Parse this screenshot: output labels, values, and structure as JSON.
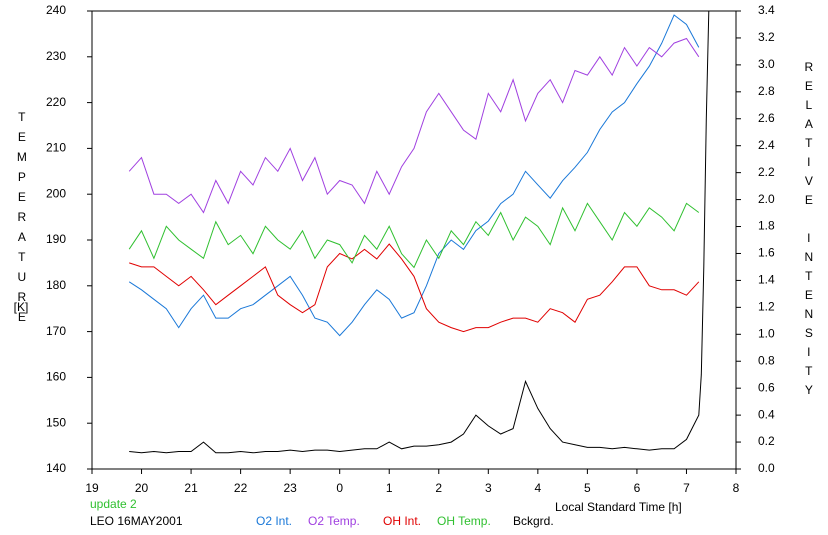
{
  "chart_data": {
    "type": "line",
    "axis_labels": {
      "y": "TEMPERATURE",
      "y_unit": "[K]",
      "y2": "RELATIVE INTENSITY",
      "x": "Local Standard Time [h]"
    },
    "annotations": [
      "update 2",
      "LEO 16MAY2001"
    ],
    "x": [
      19.75,
      20,
      20.25,
      20.5,
      20.75,
      21,
      21.25,
      21.5,
      21.75,
      22,
      22.25,
      22.5,
      22.75,
      23,
      23.25,
      23.5,
      23.75,
      24,
      24.25,
      24.5,
      24.75,
      25,
      25.25,
      25.5,
      25.75,
      26,
      26.25,
      26.5,
      26.75,
      27,
      27.25,
      27.5,
      27.75,
      28,
      28.25,
      28.5,
      28.75,
      29,
      29.25,
      29.5,
      29.75,
      30,
      30.25,
      30.5,
      30.75,
      31,
      31.25
    ],
    "series": [
      {
        "name": "O2 Int.",
        "color": "#1a78d8",
        "axis": "y2",
        "values": [
          1.39,
          1.33,
          1.26,
          1.19,
          1.05,
          1.19,
          1.29,
          1.12,
          1.12,
          1.19,
          1.22,
          1.29,
          1.36,
          1.43,
          1.29,
          1.12,
          1.09,
          0.99,
          1.09,
          1.22,
          1.33,
          1.26,
          1.12,
          1.16,
          1.36,
          1.6,
          1.7,
          1.63,
          1.77,
          1.84,
          1.97,
          2.04,
          2.21,
          2.11,
          2.01,
          2.14,
          2.24,
          2.35,
          2.52,
          2.65,
          2.72,
          2.86,
          2.99,
          3.16,
          3.37,
          3.3,
          3.13
        ]
      },
      {
        "name": "O2 Temp.",
        "color": "#a040e0",
        "values": [
          205,
          208,
          200,
          200,
          198,
          200,
          196,
          203,
          198,
          205,
          202,
          208,
          205,
          210,
          203,
          208,
          200,
          203,
          202,
          198,
          205,
          200,
          206,
          210,
          218,
          222,
          218,
          214,
          212,
          222,
          218,
          225,
          216,
          222,
          225,
          220,
          227,
          226,
          230,
          226,
          232,
          228,
          232,
          230,
          233,
          234,
          230
        ]
      },
      {
        "name": "OH Int.",
        "color": "#e00000",
        "axis": "y2",
        "values": [
          1.53,
          1.5,
          1.5,
          1.43,
          1.36,
          1.43,
          1.33,
          1.22,
          1.29,
          1.36,
          1.43,
          1.5,
          1.29,
          1.22,
          1.16,
          1.22,
          1.5,
          1.6,
          1.56,
          1.63,
          1.56,
          1.67,
          1.56,
          1.43,
          1.19,
          1.09,
          1.05,
          1.02,
          1.05,
          1.05,
          1.09,
          1.12,
          1.12,
          1.09,
          1.19,
          1.16,
          1.09,
          1.26,
          1.29,
          1.39,
          1.5,
          1.5,
          1.36,
          1.33,
          1.33,
          1.29,
          1.39
        ]
      },
      {
        "name": "OH Temp.",
        "color": "#30c030",
        "values": [
          188,
          192,
          186,
          193,
          190,
          188,
          186,
          194,
          189,
          191,
          187,
          193,
          190,
          188,
          192,
          186,
          190,
          189,
          185,
          191,
          188,
          193,
          187,
          184,
          190,
          186,
          192,
          189,
          194,
          191,
          196,
          190,
          195,
          193,
          189,
          197,
          192,
          198,
          194,
          190,
          196,
          193,
          197,
          195,
          192,
          198,
          196
        ]
      },
      {
        "name": "Bckgrd.",
        "color": "#000000",
        "axis": "y2",
        "x": [
          19.75,
          20,
          20.25,
          20.5,
          20.75,
          21,
          21.25,
          21.5,
          21.75,
          22,
          22.25,
          22.5,
          22.75,
          23,
          23.25,
          23.5,
          23.75,
          24,
          24.25,
          24.5,
          24.75,
          25,
          25.25,
          25.5,
          25.75,
          26,
          26.25,
          26.5,
          26.75,
          27,
          27.25,
          27.5,
          27.75,
          28,
          28.25,
          28.5,
          28.75,
          29,
          29.25,
          29.5,
          29.75,
          30,
          30.25,
          30.5,
          30.75,
          31,
          31.25,
          31.3,
          31.35,
          31.4,
          31.45
        ],
        "values": [
          0.13,
          0.12,
          0.13,
          0.12,
          0.13,
          0.13,
          0.2,
          0.12,
          0.12,
          0.13,
          0.12,
          0.13,
          0.13,
          0.14,
          0.13,
          0.14,
          0.14,
          0.13,
          0.14,
          0.15,
          0.15,
          0.2,
          0.15,
          0.17,
          0.17,
          0.18,
          0.2,
          0.26,
          0.4,
          0.32,
          0.26,
          0.3,
          0.65,
          0.45,
          0.3,
          0.2,
          0.18,
          0.16,
          0.16,
          0.15,
          0.16,
          0.15,
          0.14,
          0.15,
          0.15,
          0.22,
          0.4,
          0.7,
          1.5,
          2.6,
          3.4
        ]
      }
    ],
    "xlim": [
      19,
      32
    ],
    "xticks": [
      19,
      20,
      21,
      22,
      23,
      {
        "value": 24,
        "label": "0"
      },
      {
        "value": 25,
        "label": "1"
      },
      {
        "value": 26,
        "label": "2"
      },
      {
        "value": 27,
        "label": "3"
      },
      {
        "value": 28,
        "label": "4"
      },
      {
        "value": 29,
        "label": "5"
      },
      {
        "value": 30,
        "label": "6"
      },
      {
        "value": 31,
        "label": "7"
      },
      {
        "value": 32,
        "label": "8"
      }
    ],
    "ylim": [
      140,
      240
    ],
    "yticks": [
      140,
      150,
      160,
      170,
      180,
      190,
      200,
      210,
      220,
      230,
      240
    ],
    "y2lim": [
      0,
      3.4
    ],
    "y2ticks": [
      {
        "value": 0,
        "label": "0.0"
      },
      0.2,
      0.4,
      0.6,
      0.8,
      {
        "value": 1,
        "label": "1.0"
      },
      1.2,
      1.4,
      1.6,
      1.8,
      {
        "value": 2,
        "label": "2.0"
      },
      2.2,
      2.4,
      2.6,
      2.8,
      {
        "value": 3,
        "label": "3.0"
      },
      3.2,
      3.4
    ]
  }
}
